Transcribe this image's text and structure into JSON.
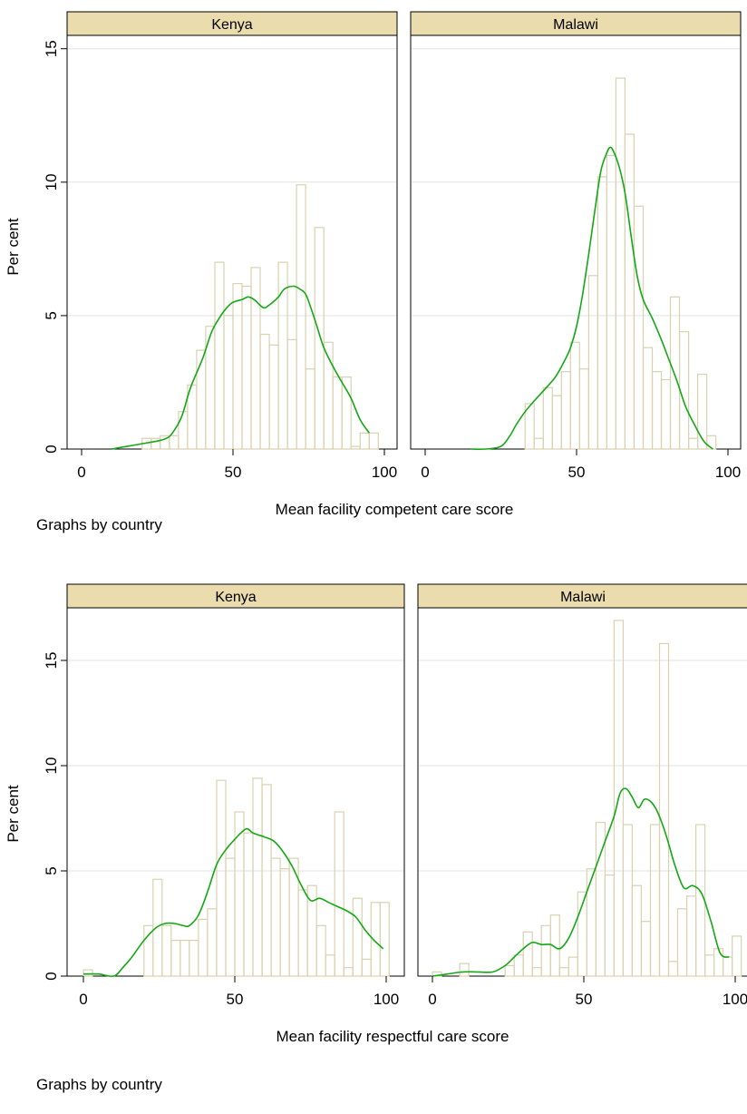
{
  "chart_data": [
    {
      "type": "bar",
      "subtype": "histogram-with-density",
      "ylabel": "Per cent",
      "xlabel": "Mean facility competent care score",
      "note": "Graphs by country",
      "xlim": [
        0,
        100
      ],
      "ylim": [
        0,
        15.5
      ],
      "xticks": [
        0,
        50,
        100
      ],
      "yticks": [
        0,
        5,
        10,
        15
      ],
      "grid": true,
      "bar_color": "#d8d2b0",
      "line_color": "#14a814",
      "header_color": "#eadcac",
      "panels": [
        {
          "title": "Kenya",
          "bins": [
            {
              "x0": 20,
              "x1": 23,
              "y": 0.4
            },
            {
              "x0": 23,
              "x1": 26,
              "y": 0.4
            },
            {
              "x0": 26,
              "x1": 29,
              "y": 0.5
            },
            {
              "x0": 29,
              "x1": 32,
              "y": 0.5
            },
            {
              "x0": 32,
              "x1": 35,
              "y": 1.4
            },
            {
              "x0": 35,
              "x1": 38,
              "y": 2.4
            },
            {
              "x0": 38,
              "x1": 41,
              "y": 3.7
            },
            {
              "x0": 41,
              "x1": 44,
              "y": 4.6
            },
            {
              "x0": 44,
              "x1": 47,
              "y": 7.0
            },
            {
              "x0": 47,
              "x1": 50,
              "y": 5.0
            },
            {
              "x0": 50,
              "x1": 53,
              "y": 6.2
            },
            {
              "x0": 53,
              "x1": 56,
              "y": 6.1
            },
            {
              "x0": 56,
              "x1": 59,
              "y": 6.8
            },
            {
              "x0": 59,
              "x1": 62,
              "y": 4.3
            },
            {
              "x0": 62,
              "x1": 65,
              "y": 3.9
            },
            {
              "x0": 65,
              "x1": 68,
              "y": 7.0
            },
            {
              "x0": 68,
              "x1": 71,
              "y": 4.1
            },
            {
              "x0": 71,
              "x1": 74,
              "y": 9.9
            },
            {
              "x0": 74,
              "x1": 77,
              "y": 3.0
            },
            {
              "x0": 77,
              "x1": 80,
              "y": 8.3
            },
            {
              "x0": 80,
              "x1": 83,
              "y": 4.0
            },
            {
              "x0": 83,
              "x1": 86,
              "y": 2.7
            },
            {
              "x0": 86,
              "x1": 89,
              "y": 2.7
            },
            {
              "x0": 89,
              "x1": 92,
              "y": 0.1
            },
            {
              "x0": 92,
              "x1": 95,
              "y": 0.6
            },
            {
              "x0": 95,
              "x1": 98,
              "y": 0.6
            }
          ],
          "density": {
            "x": [
              10,
              15,
              20,
              25,
              28,
              30,
              33,
              36,
              40,
              43,
              46,
              48,
              50,
              53,
              55,
              57,
              60,
              62,
              65,
              67,
              70,
              72,
              74,
              76,
              78,
              80,
              83,
              86,
              89,
              92,
              95
            ],
            "y": [
              0.0,
              0.1,
              0.2,
              0.3,
              0.4,
              0.6,
              1.2,
              2.3,
              3.4,
              4.4,
              5.0,
              5.3,
              5.5,
              5.6,
              5.7,
              5.6,
              5.3,
              5.4,
              5.7,
              6.0,
              6.1,
              6.0,
              5.8,
              5.2,
              4.5,
              3.8,
              3.1,
              2.5,
              1.9,
              1.1,
              0.6
            ]
          }
        },
        {
          "title": "Malawi",
          "bins": [
            {
              "x0": 33,
              "x1": 36,
              "y": 1.7
            },
            {
              "x0": 36,
              "x1": 39,
              "y": 0.4
            },
            {
              "x0": 39,
              "x1": 42,
              "y": 2.3
            },
            {
              "x0": 42,
              "x1": 45,
              "y": 2.0
            },
            {
              "x0": 45,
              "x1": 48,
              "y": 2.9
            },
            {
              "x0": 48,
              "x1": 51,
              "y": 4.0
            },
            {
              "x0": 51,
              "x1": 54,
              "y": 3.0
            },
            {
              "x0": 54,
              "x1": 57,
              "y": 6.5
            },
            {
              "x0": 57,
              "x1": 60,
              "y": 10.2
            },
            {
              "x0": 60,
              "x1": 63,
              "y": 11.0
            },
            {
              "x0": 63,
              "x1": 66,
              "y": 13.9
            },
            {
              "x0": 66,
              "x1": 69,
              "y": 11.8
            },
            {
              "x0": 69,
              "x1": 72,
              "y": 9.1
            },
            {
              "x0": 72,
              "x1": 75,
              "y": 3.8
            },
            {
              "x0": 75,
              "x1": 78,
              "y": 2.9
            },
            {
              "x0": 78,
              "x1": 81,
              "y": 2.6
            },
            {
              "x0": 81,
              "x1": 84,
              "y": 5.7
            },
            {
              "x0": 84,
              "x1": 87,
              "y": 4.4
            },
            {
              "x0": 87,
              "x1": 90,
              "y": 0.4
            },
            {
              "x0": 90,
              "x1": 93,
              "y": 2.8
            },
            {
              "x0": 93,
              "x1": 96,
              "y": 0.5
            }
          ],
          "density": {
            "x": [
              15,
              20,
              25,
              28,
              30,
              33,
              36,
              40,
              43,
              46,
              48,
              50,
              52,
              54,
              56,
              58,
              60,
              61,
              62,
              64,
              66,
              68,
              70,
              72,
              75,
              78,
              80,
              83,
              86,
              89,
              92,
              95
            ],
            "y": [
              0.0,
              0.0,
              0.1,
              0.5,
              0.9,
              1.4,
              1.8,
              2.3,
              2.7,
              3.3,
              3.8,
              4.6,
              5.8,
              7.3,
              8.9,
              10.4,
              11.1,
              11.3,
              11.2,
              10.6,
              9.6,
              8.0,
              6.5,
              5.6,
              4.9,
              4.1,
              3.5,
              2.6,
              1.6,
              0.9,
              0.3,
              0.0
            ]
          }
        }
      ]
    },
    {
      "type": "bar",
      "subtype": "histogram-with-density",
      "ylabel": "Per cent",
      "xlabel": "Mean facility respectful care score",
      "note": "Graphs by country",
      "xlim": [
        0,
        100
      ],
      "ylim": [
        0,
        17.5
      ],
      "xticks": [
        0,
        50,
        100
      ],
      "yticks": [
        0,
        5,
        10,
        15
      ],
      "grid": true,
      "bar_color": "#d8d2b0",
      "line_color": "#14a814",
      "header_color": "#eadcac",
      "panels": [
        {
          "title": "Kenya",
          "bins": [
            {
              "x0": 0,
              "x1": 3,
              "y": 0.3
            },
            {
              "x0": 20,
              "x1": 23,
              "y": 2.4
            },
            {
              "x0": 23,
              "x1": 26,
              "y": 4.6
            },
            {
              "x0": 26,
              "x1": 29,
              "y": 2.4
            },
            {
              "x0": 29,
              "x1": 32,
              "y": 1.7
            },
            {
              "x0": 32,
              "x1": 35,
              "y": 1.7
            },
            {
              "x0": 35,
              "x1": 38,
              "y": 1.7
            },
            {
              "x0": 38,
              "x1": 41,
              "y": 2.7
            },
            {
              "x0": 41,
              "x1": 44,
              "y": 3.2
            },
            {
              "x0": 44,
              "x1": 47,
              "y": 9.3
            },
            {
              "x0": 47,
              "x1": 50,
              "y": 5.6
            },
            {
              "x0": 50,
              "x1": 53,
              "y": 7.8
            },
            {
              "x0": 53,
              "x1": 56,
              "y": 6.8
            },
            {
              "x0": 56,
              "x1": 59,
              "y": 9.4
            },
            {
              "x0": 59,
              "x1": 62,
              "y": 9.1
            },
            {
              "x0": 62,
              "x1": 65,
              "y": 5.6
            },
            {
              "x0": 65,
              "x1": 68,
              "y": 5.1
            },
            {
              "x0": 68,
              "x1": 71,
              "y": 5.6
            },
            {
              "x0": 71,
              "x1": 74,
              "y": 4.1
            },
            {
              "x0": 74,
              "x1": 77,
              "y": 4.3
            },
            {
              "x0": 77,
              "x1": 80,
              "y": 2.4
            },
            {
              "x0": 80,
              "x1": 83,
              "y": 1.0
            },
            {
              "x0": 83,
              "x1": 86,
              "y": 7.8
            },
            {
              "x0": 86,
              "x1": 89,
              "y": 0.4
            },
            {
              "x0": 89,
              "x1": 92,
              "y": 3.7
            },
            {
              "x0": 92,
              "x1": 95,
              "y": 0.8
            },
            {
              "x0": 95,
              "x1": 98,
              "y": 3.5
            },
            {
              "x0": 98,
              "x1": 101,
              "y": 3.5
            }
          ],
          "density": {
            "x": [
              0,
              5,
              10,
              13,
              16,
              20,
              24,
              27,
              30,
              33,
              35,
              38,
              41,
              44,
              47,
              50,
              52,
              54,
              56,
              58,
              60,
              63,
              66,
              69,
              72,
              75,
              78,
              81,
              84,
              87,
              90,
              93,
              96,
              99
            ],
            "y": [
              0.1,
              0.1,
              0.0,
              0.4,
              0.9,
              1.7,
              2.3,
              2.5,
              2.5,
              2.4,
              2.4,
              2.9,
              4.0,
              5.3,
              6.0,
              6.5,
              6.8,
              7.0,
              6.8,
              6.7,
              6.6,
              6.4,
              5.9,
              5.2,
              4.3,
              3.6,
              3.7,
              3.5,
              3.3,
              3.1,
              2.8,
              2.2,
              1.7,
              1.3
            ]
          }
        },
        {
          "title": "Malawi",
          "bins": [
            {
              "x0": 0,
              "x1": 3,
              "y": 0.2
            },
            {
              "x0": 9,
              "x1": 12,
              "y": 0.6
            },
            {
              "x0": 24,
              "x1": 27,
              "y": 0.5
            },
            {
              "x0": 27,
              "x1": 30,
              "y": 1.0
            },
            {
              "x0": 30,
              "x1": 33,
              "y": 2.1
            },
            {
              "x0": 33,
              "x1": 36,
              "y": 0.4
            },
            {
              "x0": 36,
              "x1": 39,
              "y": 2.4
            },
            {
              "x0": 39,
              "x1": 42,
              "y": 2.9
            },
            {
              "x0": 42,
              "x1": 45,
              "y": 0.4
            },
            {
              "x0": 45,
              "x1": 48,
              "y": 0.9
            },
            {
              "x0": 48,
              "x1": 51,
              "y": 4.0
            },
            {
              "x0": 51,
              "x1": 54,
              "y": 5.1
            },
            {
              "x0": 54,
              "x1": 57,
              "y": 7.3
            },
            {
              "x0": 57,
              "x1": 60,
              "y": 4.8
            },
            {
              "x0": 60,
              "x1": 63,
              "y": 16.9
            },
            {
              "x0": 63,
              "x1": 66,
              "y": 7.2
            },
            {
              "x0": 66,
              "x1": 69,
              "y": 4.3
            },
            {
              "x0": 69,
              "x1": 72,
              "y": 2.6
            },
            {
              "x0": 72,
              "x1": 75,
              "y": 7.2
            },
            {
              "x0": 75,
              "x1": 78,
              "y": 15.8
            },
            {
              "x0": 78,
              "x1": 81,
              "y": 0.7
            },
            {
              "x0": 81,
              "x1": 84,
              "y": 3.2
            },
            {
              "x0": 84,
              "x1": 87,
              "y": 3.8
            },
            {
              "x0": 87,
              "x1": 90,
              "y": 7.2
            },
            {
              "x0": 90,
              "x1": 93,
              "y": 1.0
            },
            {
              "x0": 93,
              "x1": 96,
              "y": 1.3
            },
            {
              "x0": 96,
              "x1": 99,
              "y": 0.9
            },
            {
              "x0": 99,
              "x1": 102,
              "y": 1.9
            }
          ],
          "density": {
            "x": [
              0,
              5,
              10,
              15,
              20,
              24,
              27,
              30,
              33,
              36,
              39,
              42,
              45,
              48,
              51,
              54,
              57,
              60,
              62,
              64,
              66,
              68,
              70,
              72,
              74,
              76,
              78,
              80,
              83,
              86,
              89,
              92,
              95,
              98
            ],
            "y": [
              0.0,
              0.1,
              0.2,
              0.2,
              0.2,
              0.5,
              0.9,
              1.3,
              1.6,
              1.5,
              1.5,
              1.3,
              1.8,
              2.8,
              4.0,
              5.2,
              6.4,
              7.6,
              8.7,
              8.9,
              8.5,
              8.0,
              8.4,
              8.3,
              7.9,
              7.2,
              6.3,
              5.3,
              4.2,
              4.3,
              3.9,
              2.6,
              1.1,
              0.9
            ]
          }
        }
      ]
    }
  ]
}
